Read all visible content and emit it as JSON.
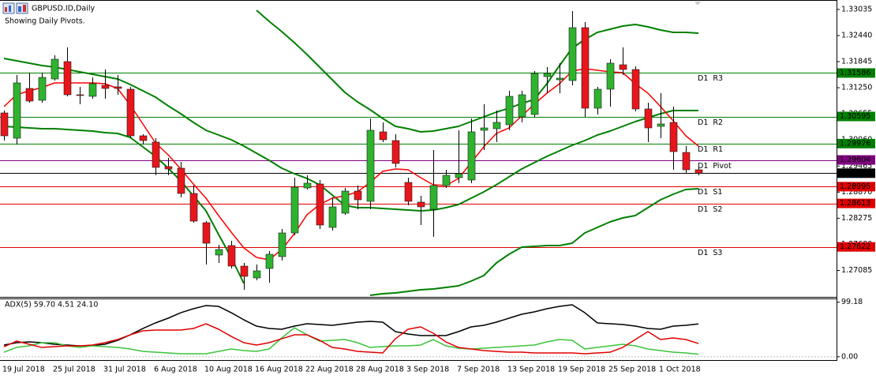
{
  "chart_data": [
    {
      "type": "candlestick",
      "title": "GBPUSD.ID,Daily",
      "subtitle": "Showing Daily Pivots.",
      "categories": [
        "19 Jul 2018",
        null,
        null,
        null,
        "25 Jul 2018",
        null,
        null,
        null,
        "31 Jul 2018",
        null,
        null,
        null,
        "6 Aug 2018",
        null,
        null,
        null,
        "10 Aug 2018",
        null,
        null,
        null,
        "16 Aug 2018",
        null,
        null,
        null,
        "22 Aug 2018",
        null,
        null,
        null,
        "28 Aug 2018",
        null,
        null,
        null,
        "3 Sep 2018",
        null,
        null,
        null,
        "7 Sep 2018",
        null,
        null,
        null,
        "13 Sep 2018",
        null,
        null,
        null,
        "19 Sep 2018",
        null,
        null,
        null,
        "25 Sep 2018",
        null,
        null,
        null,
        "1 Oct 2018",
        null,
        null,
        null
      ],
      "open": [
        1.30676,
        1.301,
        1.31234,
        1.30964,
        1.3145,
        1.31846,
        1.3109,
        1.31054,
        1.31306,
        1.3127,
        1.31216,
        1.30154,
        1.3001,
        1.29452,
        1.29416,
        1.2884,
        1.28174,
        1.27436,
        1.27652,
        1.27184,
        1.26914,
        1.2713,
        1.274,
        1.2794,
        1.28966,
        1.29056,
        1.28066,
        1.2839,
        1.28894,
        1.2866,
        1.30244,
        1.30046,
        1.29092,
        1.28642,
        1.2848,
        1.2902,
        1.292,
        1.29146,
        1.3028,
        1.30316,
        1.30406,
        1.30586,
        1.3064,
        1.31504,
        1.31432,
        1.31414,
        1.3262,
        1.30784,
        1.31216,
        1.31774,
        1.31666,
        1.30766,
        1.3037,
        1.3046,
        1.29776,
        1.2938
      ],
      "high": [
        1.3073,
        1.3154,
        1.31594,
        1.31594,
        1.3199,
        1.3217,
        1.3127,
        1.31486,
        1.31666,
        1.3154,
        1.3127,
        1.3019,
        1.301,
        1.2965,
        1.2956,
        1.2902,
        1.2821,
        1.2767,
        1.2776,
        1.27256,
        1.2722,
        1.27526,
        1.2803,
        1.292,
        1.29254,
        1.29146,
        1.2875,
        1.28966,
        1.2902,
        1.3055,
        1.3046,
        1.3019,
        1.292,
        1.28786,
        1.2983,
        1.2938,
        1.3028,
        1.3055,
        1.30874,
        1.3073,
        1.3118,
        1.3118,
        1.3163,
        1.3172,
        1.3181,
        1.32998,
        1.32746,
        1.3127,
        1.319,
        1.3217,
        1.31738,
        1.3091,
        1.31126,
        1.3082,
        1.2992,
        1.2947
      ],
      "low": [
        1.30046,
        1.29956,
        1.3091,
        1.3091,
        1.31414,
        1.31054,
        1.30874,
        1.31,
        1.31,
        1.3109,
        1.301,
        1.29956,
        1.29254,
        1.29254,
        1.2875,
        1.28174,
        1.2722,
        1.27256,
        1.2713,
        1.26644,
        1.2686,
        1.26806,
        1.2731,
        1.27886,
        1.2893,
        1.2803,
        1.27994,
        1.28354,
        1.2848,
        1.2848,
        1.3001,
        1.29434,
        1.2857,
        1.2812,
        1.2785,
        1.28966,
        1.29074,
        1.29074,
        1.2983,
        1.3001,
        1.3028,
        1.3046,
        1.30586,
        1.31126,
        1.31126,
        1.31306,
        1.30586,
        1.3064,
        1.3082,
        1.3154,
        1.30712,
        1.3001,
        1.301,
        1.2938,
        1.2929,
        1.29254
      ],
      "close": [
        1.30154,
        1.3136,
        1.30946,
        1.31486,
        1.319,
        1.3109,
        1.31072,
        1.31342,
        1.31234,
        1.31234,
        1.30154,
        1.30046,
        1.29434,
        1.29398,
        1.2884,
        1.2821,
        1.27706,
        1.27562,
        1.27184,
        1.2695,
        1.27076,
        1.27454,
        1.2794,
        1.28984,
        1.29074,
        1.2812,
        1.28534,
        1.28894,
        1.28696,
        1.3028,
        1.30064,
        1.29524,
        1.2866,
        1.28534,
        1.2902,
        1.29254,
        1.2929,
        1.30244,
        1.30334,
        1.3046,
        1.31054,
        1.3109,
        1.31576,
        1.31576,
        1.31468,
        1.3262,
        1.30784,
        1.31216,
        1.3181,
        1.31666,
        1.30766,
        1.30334,
        1.30424,
        1.29794,
        1.2938,
        1.29302
      ],
      "up_color": "#2fb32f",
      "down_color": "#e8161b",
      "lines": [
        {
          "color": "#008000",
          "values": [
            null,
            null,
            null,
            null,
            null,
            null,
            null,
            null,
            null,
            null,
            null,
            null,
            null,
            null,
            null,
            null,
            null,
            null,
            null,
            null,
            1.33016,
            1.32764,
            1.3253,
            1.32278,
            1.32008,
            1.3172,
            1.31432,
            1.31144,
            1.30928,
            1.30748,
            1.3055,
            1.3037,
            1.30316,
            1.30244,
            1.30262,
            1.30316,
            1.3037,
            1.30478,
            1.30586,
            1.30694,
            1.30784,
            1.30892,
            1.30982,
            1.31342,
            1.31756,
            1.32152,
            1.3235,
            1.32512,
            1.32584,
            1.32656,
            1.32692,
            1.32638,
            1.32566,
            1.32512,
            1.32512,
            1.32494
          ]
        },
        {
          "color": "#008000",
          "values": [
            1.31918,
            1.31864,
            1.3181,
            1.31756,
            1.3172,
            1.31666,
            1.31612,
            1.31558,
            1.31504,
            1.3145,
            1.31324,
            1.3118,
            1.31036,
            1.30838,
            1.30658,
            1.3046,
            1.3028,
            1.30172,
            1.30064,
            1.2992,
            1.29758,
            1.29596,
            1.29416,
            1.2929,
            1.29182,
            1.29038,
            1.28804,
            1.2857,
            1.28516,
            1.28516,
            1.28498,
            1.2848,
            1.28462,
            1.28444,
            1.28462,
            1.28516,
            1.28588,
            1.28732,
            1.28876,
            1.29038,
            1.29218,
            1.29398,
            1.29542,
            1.29686,
            1.29812,
            1.29938,
            1.30046,
            1.30172,
            1.30262,
            1.3037,
            1.30478,
            1.30568,
            1.30658,
            1.3073,
            1.3073,
            1.3073
          ]
        },
        {
          "color": "#008000",
          "values": [
            1.3037,
            1.30352,
            1.30334,
            1.30316,
            1.30316,
            1.30298,
            1.3028,
            1.30262,
            1.30226,
            1.30208,
            1.30118,
            1.29902,
            1.29686,
            1.29416,
            1.29128,
            1.28786,
            1.28444,
            1.27904,
            1.27382,
            1.26788,
            null,
            null,
            null,
            null,
            null,
            null,
            null,
            null,
            null,
            1.26518,
            1.26554,
            1.26572,
            1.26608,
            1.26644,
            1.26662,
            1.26698,
            1.26734,
            1.26842,
            1.26968,
            1.27256,
            1.27454,
            1.27616,
            1.27634,
            1.27652,
            1.27652,
            1.27706,
            1.2794,
            1.28066,
            1.28192,
            1.28282,
            1.28336,
            1.28516,
            1.28696,
            1.28822,
            1.2893,
            1.28948
          ]
        },
        {
          "color": "#ff0000",
          "values": [
            1.3082,
            1.3109,
            1.3118,
            1.31252,
            1.3136,
            1.3136,
            1.3136,
            1.3136,
            1.31342,
            1.31234,
            1.30856,
            1.30424,
            1.29992,
            1.29722,
            1.29398,
            1.29056,
            1.28732,
            1.28336,
            1.27958,
            1.27598,
            1.27382,
            1.27328,
            1.27562,
            1.27922,
            1.28354,
            1.28588,
            1.28732,
            1.28786,
            1.28876,
            1.29092,
            1.29344,
            1.29398,
            1.2938,
            1.292,
            1.29038,
            1.2902,
            1.29182,
            1.29542,
            1.29902,
            1.30208,
            1.30334,
            1.30604,
            1.30874,
            1.31126,
            1.31342,
            1.3163,
            1.31684,
            1.31648,
            1.31612,
            1.31594,
            1.31342,
            1.31126,
            1.3082,
            1.30496,
            1.30154,
            1.2992
          ]
        }
      ],
      "levels": [
        {
          "label": "D1  R3",
          "value": 1.31586,
          "color": "#008000"
        },
        {
          "label": "D1  R2",
          "value": 1.30595,
          "color": "#008000"
        },
        {
          "label": "D1  R1",
          "value": 1.29976,
          "color": "#008000"
        },
        {
          "label": "D1  Pivot",
          "value": 1.29604,
          "color": "#800080"
        },
        {
          "label": "D1  S1",
          "value": 1.28995,
          "color": "#e00000"
        },
        {
          "label": "D1  S2",
          "value": 1.28613,
          "color": "#e00000"
        },
        {
          "label": "D1  S3",
          "value": 1.27622,
          "color": "#e00000"
        }
      ],
      "last_price": 1.29302,
      "ylim": [
        1.265,
        1.3325
      ],
      "yticks": [
        1.33035,
        {
          "value": 1.3244,
          "label": "1.32440"
        },
        1.31845,
        {
          "value": 1.3125,
          "label": "1.31250"
        },
        1.30655,
        {
          "value": 1.3006,
          "label": "1.30060"
        },
        1.29465,
        {
          "value": 1.2887,
          "label": "1.28870"
        },
        1.28275,
        {
          "value": 1.2768,
          "label": "1.27680"
        },
        1.27085
      ]
    },
    {
      "type": "line",
      "label": "ADX(5) 59.70 4.51 24.10",
      "ylim": [
        -6,
        106
      ],
      "yticks": [
        99.18,
        {
          "value": 0,
          "label": "0.00"
        }
      ],
      "series": [
        {
          "color": "#000000",
          "values": [
            21.3,
            25.6,
            27.0,
            25.6,
            22.7,
            21.3,
            19.8,
            20.5,
            22.7,
            29.9,
            39.9,
            51.4,
            61.5,
            70.1,
            80.1,
            87.3,
            93.1,
            91.6,
            80.1,
            67.2,
            55.7,
            51.4,
            50.0,
            55.7,
            60.0,
            58.6,
            57.2,
            60.0,
            62.9,
            64.3,
            62.9,
            45.7,
            41.4,
            38.5,
            38.5,
            38.5,
            45.7,
            54.3,
            57.2,
            62.9,
            70.1,
            77.3,
            81.6,
            87.3,
            91.6,
            94.5,
            80.1,
            61.5,
            60.0,
            58.6,
            55.7,
            51.4,
            50.0,
            55.7,
            57.2,
            59.7
          ]
        },
        {
          "color": "#3cc43c",
          "values": [
            8.3,
            16.9,
            19.8,
            25.6,
            25.6,
            19.8,
            16.9,
            19.8,
            18.4,
            16.9,
            14.1,
            9.8,
            8.3,
            6.9,
            5.5,
            5.5,
            5.5,
            9.8,
            14.1,
            11.2,
            9.8,
            14.1,
            34.2,
            52.8,
            39.9,
            28.4,
            29.9,
            31.3,
            25.6,
            16.9,
            18.4,
            19.8,
            19.8,
            21.3,
            31.3,
            19.8,
            15.5,
            14.1,
            15.5,
            16.9,
            18.4,
            19.8,
            21.3,
            27.0,
            31.3,
            29.9,
            14.1,
            16.9,
            19.8,
            22.7,
            19.8,
            14.1,
            11.2,
            8.3,
            6.9,
            4.51
          ]
        },
        {
          "color": "#e00000",
          "values": [
            18.4,
            28.4,
            22.7,
            16.9,
            18.4,
            19.8,
            19.8,
            21.3,
            25.6,
            31.3,
            39.9,
            47.1,
            48.5,
            48.5,
            48.5,
            51.4,
            60.0,
            50.0,
            37.0,
            25.6,
            21.3,
            25.6,
            32.7,
            39.9,
            39.9,
            29.9,
            16.9,
            14.1,
            9.8,
            8.3,
            6.9,
            32.7,
            50.0,
            54.3,
            42.8,
            27.0,
            16.9,
            14.1,
            11.2,
            9.8,
            8.3,
            8.3,
            6.9,
            6.9,
            6.9,
            6.9,
            5.5,
            6.9,
            8.3,
            16.9,
            31.3,
            45.7,
            31.3,
            34.2,
            31.3,
            24.1
          ]
        }
      ]
    }
  ]
}
